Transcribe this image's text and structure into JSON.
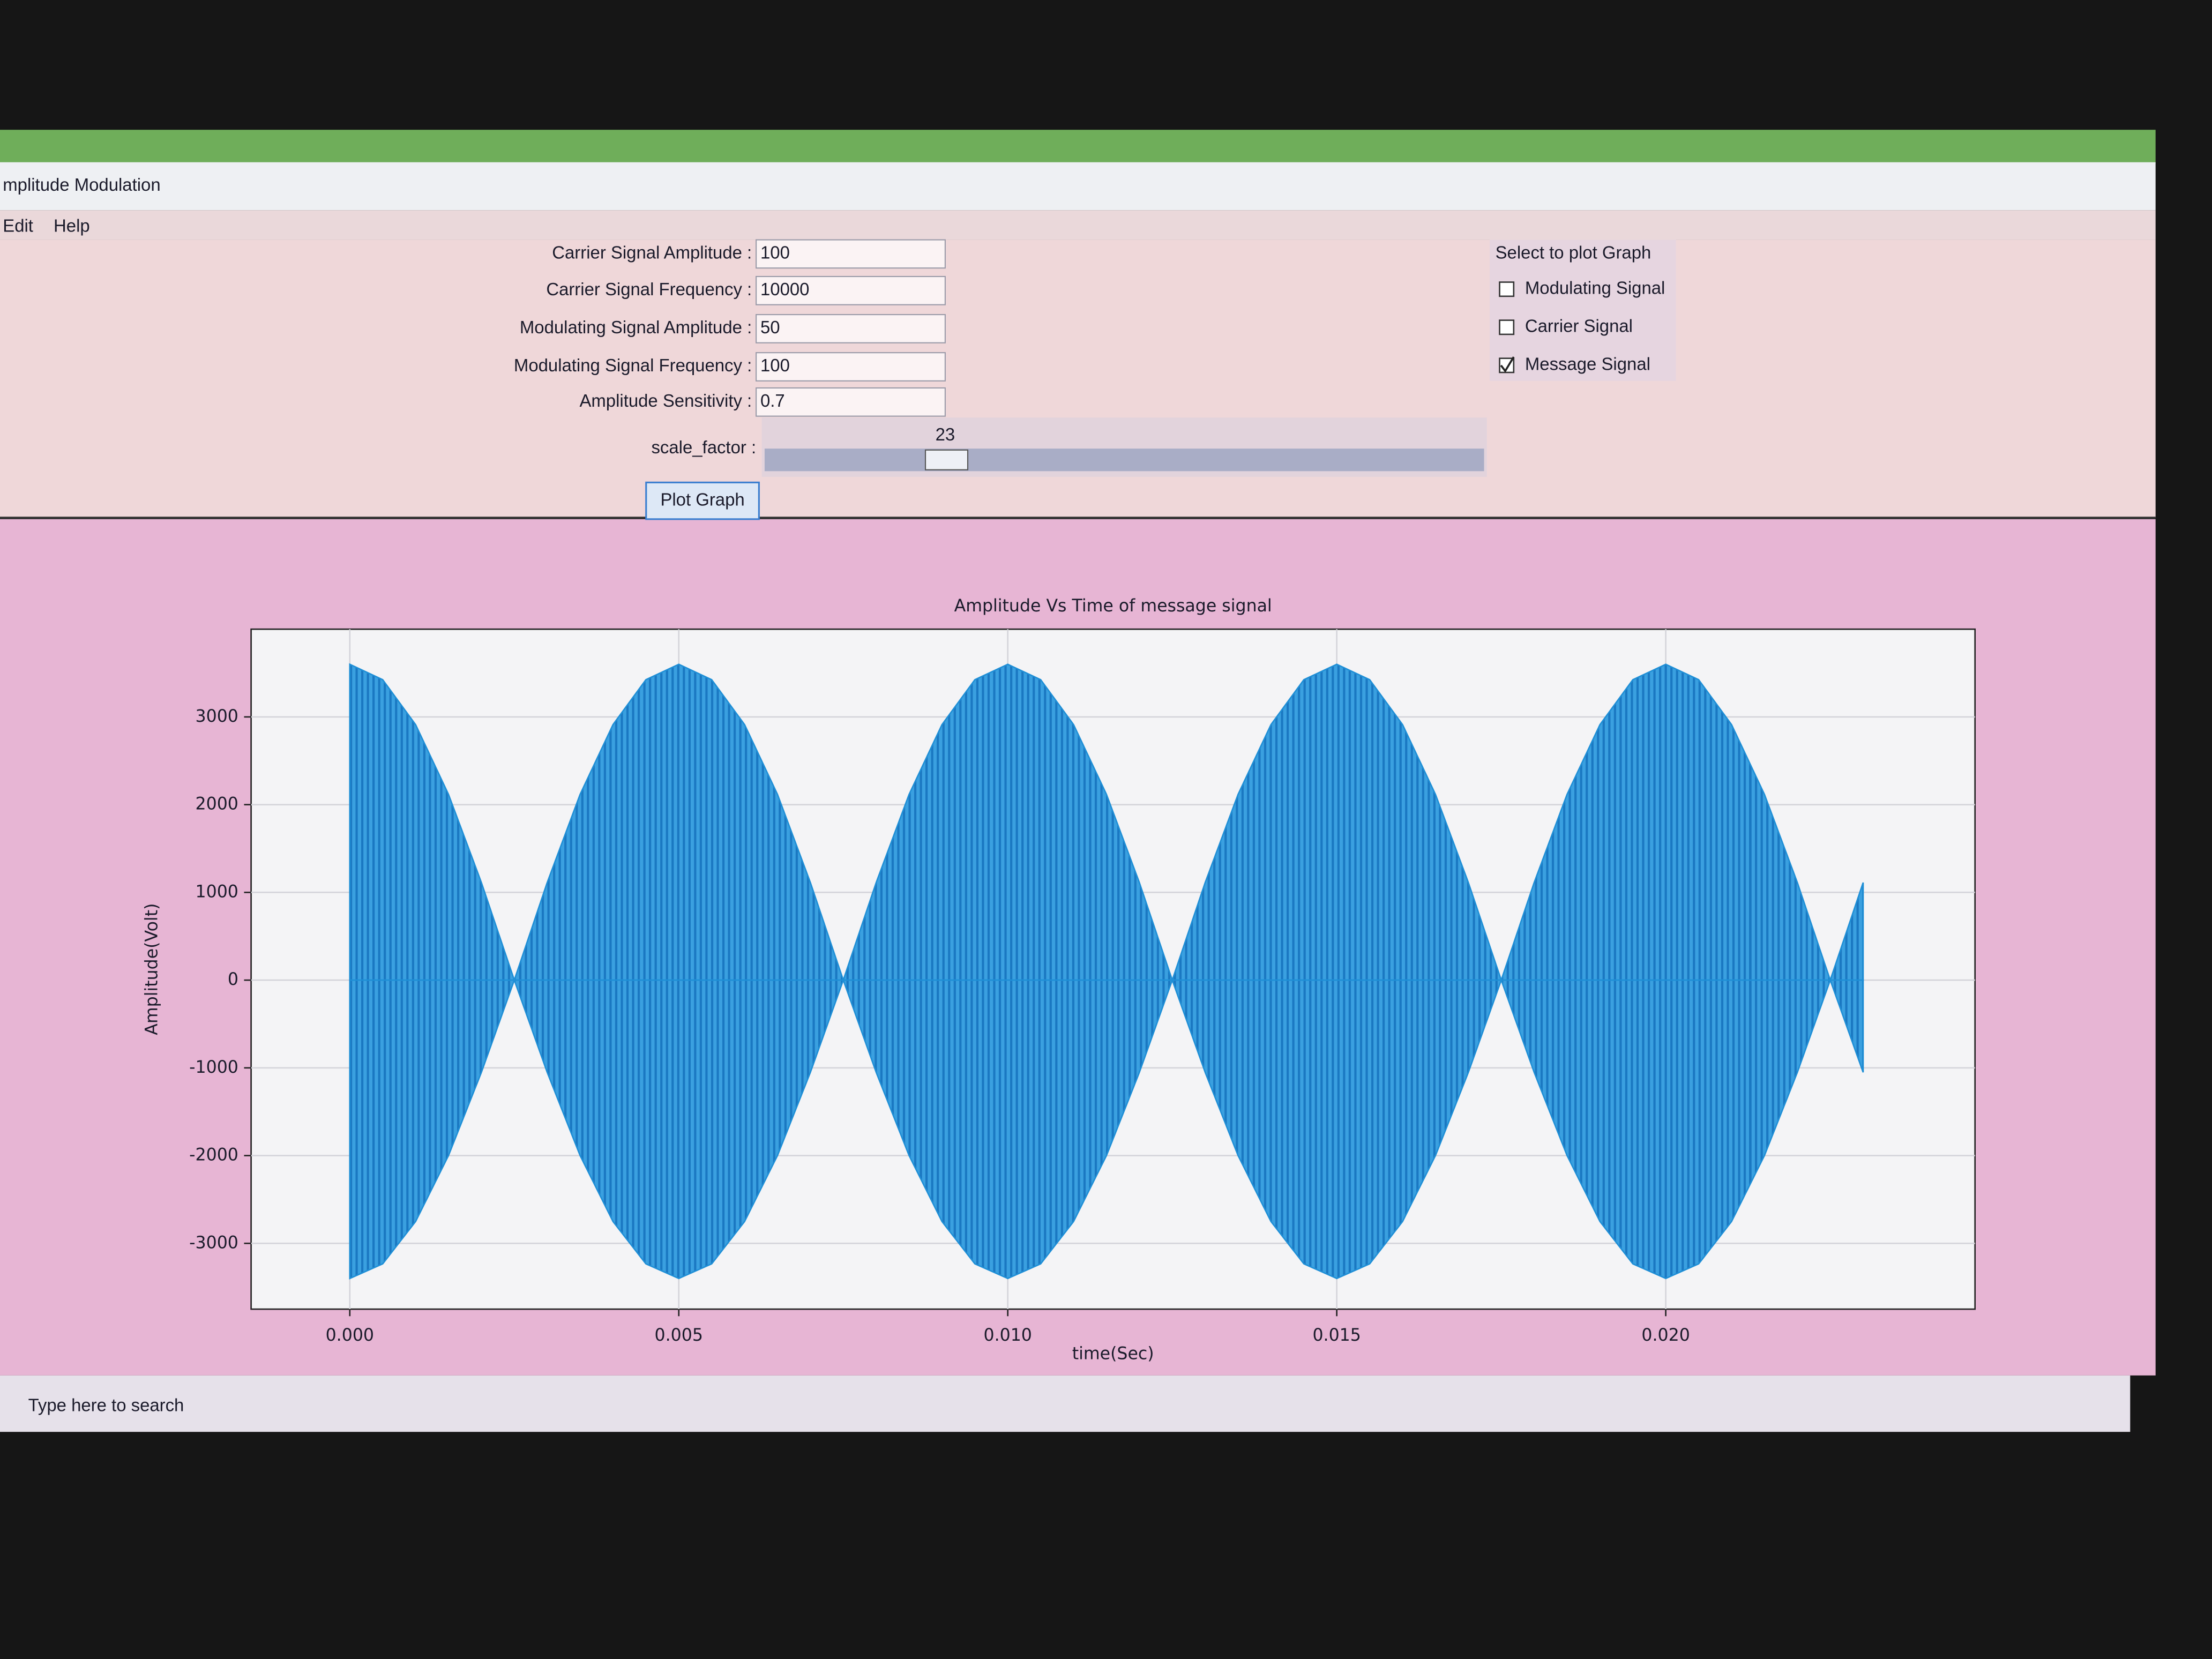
{
  "window": {
    "title": "mplitude Modulation",
    "menu": [
      "Edit",
      "Help"
    ]
  },
  "form": {
    "fields": [
      {
        "label": "Carrier Signal Amplitude :",
        "value": "100"
      },
      {
        "label": "Carrier Signal Frequency :",
        "value": "10000"
      },
      {
        "label": "Modulating Signal Amplitude :",
        "value": "50"
      },
      {
        "label": "Modulating Signal Frequency :",
        "value": "100"
      },
      {
        "label": "Amplitude Sensitivity :",
        "value": "0.7"
      }
    ],
    "slider": {
      "label": "scale_factor :",
      "value": 23
    },
    "button": "Plot Graph"
  },
  "checkboxes": {
    "heading": "Select to plot Graph",
    "items": [
      {
        "label": "Modulating Signal",
        "checked": false
      },
      {
        "label": "Carrier Signal",
        "checked": false
      },
      {
        "label": "Message Signal",
        "checked": true
      }
    ]
  },
  "taskbar": {
    "search": "Type here to search"
  },
  "chart_data": {
    "type": "area",
    "title": "Amplitude Vs Time of message signal",
    "x_label": "time(Sec)",
    "y_label": "Amplitude(Volt)",
    "x": [
      0,
      0.0005,
      0.001,
      0.0015,
      0.002,
      0.0025,
      0.003,
      0.0035,
      0.004,
      0.0045,
      0.005,
      0.0055,
      0.006,
      0.0065,
      0.007,
      0.0075,
      0.008,
      0.0085,
      0.009,
      0.0095,
      0.01,
      0.0105,
      0.011,
      0.0115,
      0.012,
      0.0125,
      0.013,
      0.0135,
      0.014,
      0.0145,
      0.015,
      0.0155,
      0.016,
      0.0165,
      0.017,
      0.0175,
      0.018,
      0.0185,
      0.019,
      0.0195,
      0.02,
      0.0205,
      0.021,
      0.0215,
      0.022,
      0.0225,
      0.023
    ],
    "series": [
      {
        "color": "#1f8fd6",
        "values": [
          3600,
          3424,
          2912,
          2117,
          1112,
          0,
          1112,
          2117,
          2912,
          3424,
          3600,
          3424,
          2912,
          2117,
          1112,
          0,
          1112,
          2117,
          2912,
          3424,
          3600,
          3424,
          2912,
          2117,
          1112,
          0,
          1112,
          2117,
          2912,
          3424,
          3600,
          3424,
          2912,
          2117,
          1112,
          0,
          1112,
          2117,
          2912,
          3424,
          3600,
          3424,
          2912,
          2117,
          1112,
          0,
          1112
        ]
      },
      {
        "color": "#1f8fd6",
        "values": [
          -3400,
          -3234,
          -2751,
          -1999,
          -1051,
          0,
          -1051,
          -1999,
          -2751,
          -3234,
          -3400,
          -3234,
          -2751,
          -1999,
          -1051,
          0,
          -1051,
          -1999,
          -2751,
          -3234,
          -3400,
          -3234,
          -2751,
          -1999,
          -1051,
          0,
          -1051,
          -1999,
          -2751,
          -3234,
          -3400,
          -3234,
          -2751,
          -1999,
          -1051,
          0,
          -1051,
          -1999,
          -2751,
          -3234,
          -3400,
          -3234,
          -2751,
          -1999,
          -1051,
          0,
          -1051
        ]
      }
    ],
    "xlim": [
      -0.0015,
      0.0247
    ],
    "ylim": [
      -3750,
      4000
    ],
    "xticks": [
      {
        "value": 0,
        "label": "0.000"
      },
      {
        "value": 0.005,
        "label": "0.005"
      },
      {
        "value": 0.01,
        "label": "0.010"
      },
      {
        "value": 0.015,
        "label": "0.015"
      },
      {
        "value": 0.02,
        "label": "0.020"
      }
    ],
    "yticks": [
      -3000,
      -2000,
      -1000,
      0,
      1000,
      2000,
      3000
    ],
    "grid": true
  }
}
